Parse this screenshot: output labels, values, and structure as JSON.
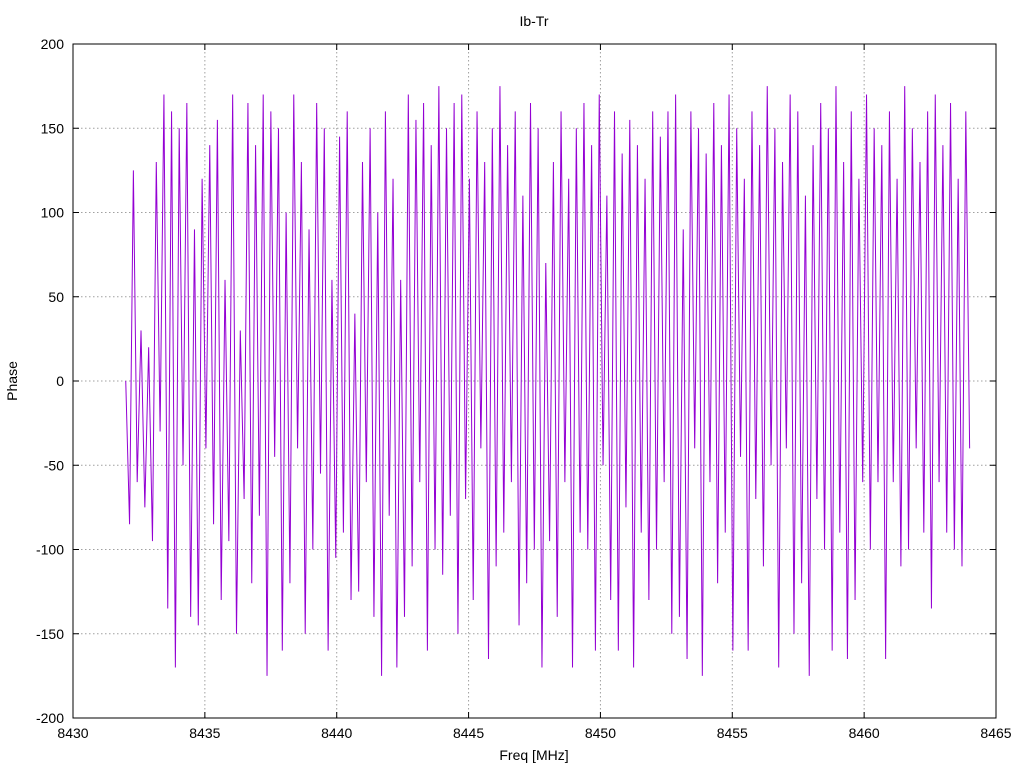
{
  "chart_data": {
    "type": "line",
    "title": "Ib-Tr",
    "xlabel": "Freq [MHz]",
    "ylabel": "Phase",
    "xlim": [
      8430,
      8465
    ],
    "ylim": [
      -200,
      200
    ],
    "xticks": [
      8430,
      8435,
      8440,
      8445,
      8450,
      8455,
      8460,
      8465
    ],
    "yticks": [
      -200,
      -150,
      -100,
      -50,
      0,
      50,
      100,
      150,
      200
    ],
    "grid": true,
    "series_color": "#9400d3",
    "series": [
      {
        "x_start": 8432.0,
        "x_end": 8464.0,
        "y": [
          0,
          -85,
          125,
          -60,
          30,
          -75,
          20,
          -95,
          130,
          -30,
          170,
          -135,
          160,
          -170,
          150,
          -50,
          165,
          -140,
          90,
          -145,
          120,
          -40,
          140,
          -85,
          155,
          -130,
          60,
          -95,
          170,
          -150,
          30,
          -70,
          165,
          -120,
          140,
          -80,
          170,
          -175,
          160,
          -45,
          150,
          -160,
          100,
          -120,
          170,
          -40,
          130,
          -150,
          90,
          -100,
          165,
          -55,
          150,
          -160,
          60,
          -105,
          145,
          -90,
          160,
          -130,
          40,
          -125,
          130,
          -60,
          150,
          -140,
          100,
          -175,
          160,
          -80,
          120,
          -170,
          60,
          -140,
          170,
          -110,
          155,
          -60,
          165,
          -160,
          140,
          -100,
          175,
          -115,
          150,
          -80,
          165,
          -150,
          170,
          -70,
          120,
          -130,
          160,
          -40,
          130,
          -165,
          150,
          -110,
          175,
          -90,
          140,
          -60,
          160,
          -145,
          110,
          -120,
          165,
          -100,
          150,
          -170,
          70,
          -95,
          130,
          -140,
          160,
          -60,
          120,
          -170,
          150,
          -90,
          165,
          -100,
          140,
          -160,
          170,
          -50,
          110,
          -130,
          160,
          -160,
          135,
          -75,
          155,
          -170,
          140,
          -90,
          120,
          -130,
          160,
          -100,
          145,
          -60,
          160,
          -150,
          170,
          -140,
          90,
          -165,
          160,
          -40,
          150,
          -175,
          135,
          -60,
          165,
          -120,
          140,
          -90,
          170,
          -160,
          150,
          -45,
          120,
          -160,
          160,
          -70,
          140,
          -110,
          175,
          -50,
          150,
          -170,
          130,
          -40,
          170,
          -150,
          160,
          -120,
          110,
          -175,
          140,
          -70,
          165,
          -100,
          150,
          -160,
          175,
          -90,
          130,
          -165,
          160,
          -130,
          120,
          -60,
          170,
          -100,
          150,
          -60,
          140,
          -165,
          160,
          -60,
          120,
          -110,
          175,
          -100,
          150,
          -40,
          130,
          -90,
          160,
          -135,
          170,
          -60,
          140,
          -90,
          165,
          -100,
          120,
          -110,
          160,
          -40
        ]
      }
    ]
  }
}
